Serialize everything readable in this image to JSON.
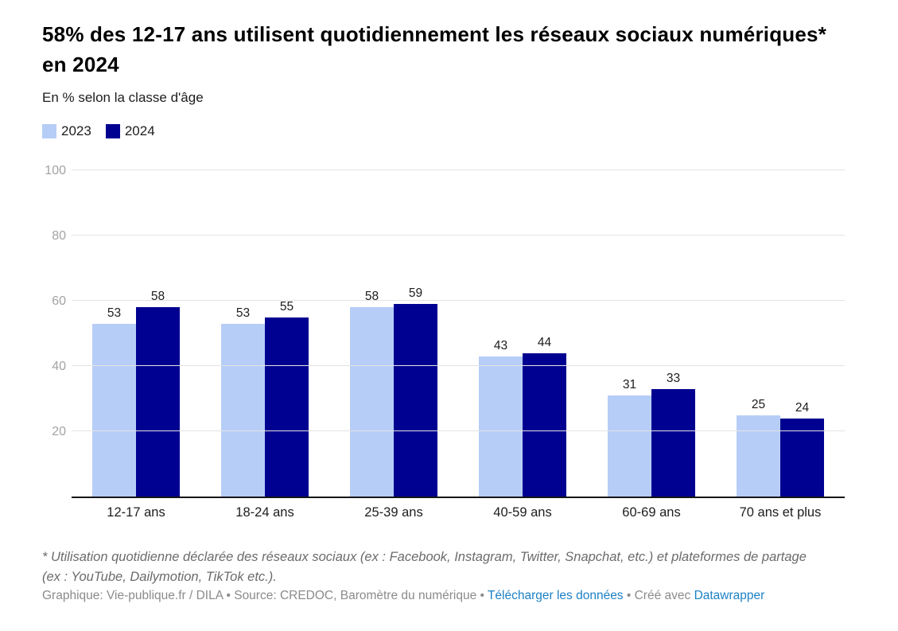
{
  "page": {
    "background": "#ffffff"
  },
  "header": {
    "title": "58% des 12-17 ans utilisent quotidiennement les réseaux sociaux numériques* en 2024",
    "subtitle": "En % selon la classe d'âge"
  },
  "legend": {
    "items": [
      {
        "label": "2023",
        "color": "#b6cdf7"
      },
      {
        "label": "2024",
        "color": "#000190"
      }
    ]
  },
  "chart_data": {
    "type": "bar",
    "title": "58% des 12-17 ans utilisent quotidiennement les réseaux sociaux numériques* en 2024",
    "subtitle": "En % selon la classe d'âge",
    "categories": [
      "12-17 ans",
      "18-24 ans",
      "25-39 ans",
      "40-59 ans",
      "60-69 ans",
      "70 ans et plus"
    ],
    "series": [
      {
        "name": "2023",
        "color": "#b6cdf7",
        "values": [
          53,
          53,
          58,
          43,
          31,
          25
        ]
      },
      {
        "name": "2024",
        "color": "#000190",
        "values": [
          58,
          55,
          59,
          44,
          33,
          24
        ]
      }
    ],
    "xlabel": "",
    "ylabel": "",
    "ylim": [
      0,
      100
    ],
    "yticks": [
      20,
      40,
      60,
      80,
      100
    ],
    "grid": "horizontal",
    "gridline_color": "#e3e3e3",
    "axis_label_color": "#a3a3a3",
    "value_labels": true,
    "legend_position": "top-left"
  },
  "footer": {
    "footnote": "* Utilisation quotidienne déclarée des réseaux sociaux (ex : Facebook, Instagram, Twitter, Snapchat, etc.) et plateformes de partage (ex : YouTube, Dailymotion, TikTok etc.).",
    "attribution_prefix": "Graphique: Vie-publique.fr / DILA • Source: CREDOC, Baromètre du numérique • ",
    "download_link": "Télécharger les données",
    "attribution_middle": " • Créé avec ",
    "datawrapper_link": "Datawrapper",
    "link_color": "#1d81c4"
  }
}
